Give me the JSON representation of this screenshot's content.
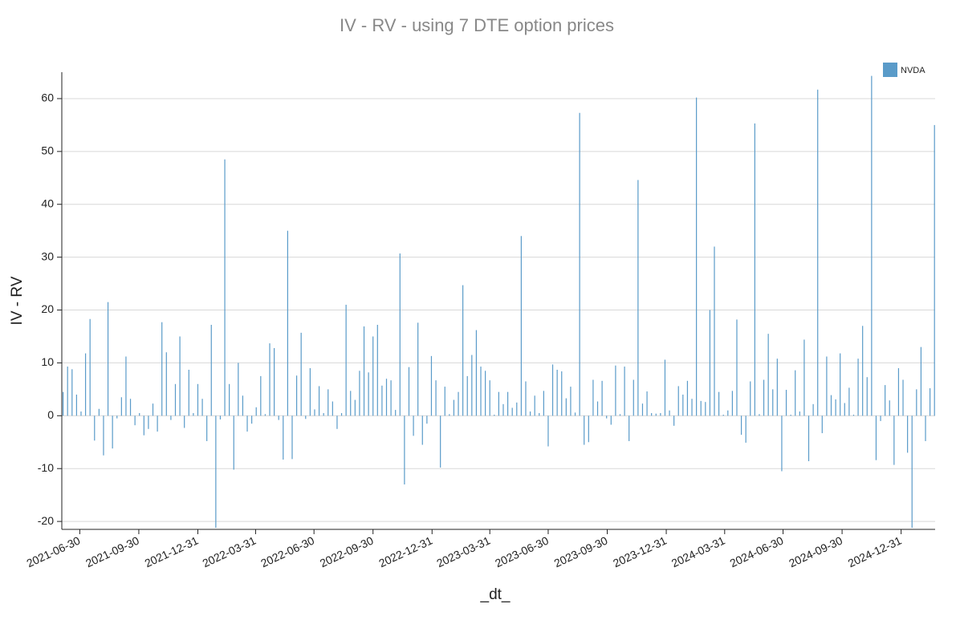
{
  "chart_data": {
    "type": "bar",
    "title": "IV - RV  - using 7 DTE option prices",
    "x_label": "_dt_",
    "y_label": "IV - RV",
    "legend_position": "upper right",
    "grid": true,
    "xlim": [
      "2021-06-02",
      "2025-02-22"
    ],
    "xticks": [
      "2021-06-30",
      "2021-09-30",
      "2021-12-31",
      "2022-03-31",
      "2022-06-30",
      "2022-09-30",
      "2022-12-31",
      "2023-03-31",
      "2023-06-30",
      "2023-09-30",
      "2023-12-31",
      "2024-03-31",
      "2024-06-30",
      "2024-09-30",
      "2024-12-31"
    ],
    "ylim": [
      -21.5,
      65
    ],
    "yticks": [
      -20,
      -10,
      0,
      10,
      20,
      30,
      40,
      50,
      60
    ],
    "x": [
      "2021-06-04",
      "2021-06-11",
      "2021-06-18",
      "2021-06-25",
      "2021-07-02",
      "2021-07-09",
      "2021-07-16",
      "2021-07-23",
      "2021-07-30",
      "2021-08-06",
      "2021-08-13",
      "2021-08-20",
      "2021-08-27",
      "2021-09-03",
      "2021-09-10",
      "2021-09-17",
      "2021-09-24",
      "2021-10-01",
      "2021-10-08",
      "2021-10-15",
      "2021-10-22",
      "2021-10-29",
      "2021-11-05",
      "2021-11-12",
      "2021-11-19",
      "2021-11-26",
      "2021-12-03",
      "2021-12-10",
      "2021-12-17",
      "2021-12-24",
      "2021-12-31",
      "2022-01-07",
      "2022-01-14",
      "2022-01-21",
      "2022-01-28",
      "2022-02-04",
      "2022-02-11",
      "2022-02-18",
      "2022-02-25",
      "2022-03-04",
      "2022-03-11",
      "2022-03-18",
      "2022-03-25",
      "2022-04-01",
      "2022-04-08",
      "2022-04-15",
      "2022-04-22",
      "2022-04-29",
      "2022-05-06",
      "2022-05-13",
      "2022-05-20",
      "2022-05-27",
      "2022-06-03",
      "2022-06-10",
      "2022-06-17",
      "2022-06-24",
      "2022-07-01",
      "2022-07-08",
      "2022-07-15",
      "2022-07-22",
      "2022-07-29",
      "2022-08-05",
      "2022-08-12",
      "2022-08-19",
      "2022-08-26",
      "2022-09-02",
      "2022-09-09",
      "2022-09-16",
      "2022-09-23",
      "2022-09-30",
      "2022-10-07",
      "2022-10-14",
      "2022-10-21",
      "2022-10-28",
      "2022-11-04",
      "2022-11-11",
      "2022-11-18",
      "2022-11-25",
      "2022-12-02",
      "2022-12-09",
      "2022-12-16",
      "2022-12-23",
      "2022-12-30",
      "2023-01-06",
      "2023-01-13",
      "2023-01-20",
      "2023-01-27",
      "2023-02-03",
      "2023-02-10",
      "2023-02-17",
      "2023-02-24",
      "2023-03-03",
      "2023-03-10",
      "2023-03-17",
      "2023-03-24",
      "2023-03-31",
      "2023-04-07",
      "2023-04-14",
      "2023-04-21",
      "2023-04-28",
      "2023-05-05",
      "2023-05-12",
      "2023-05-19",
      "2023-05-26",
      "2023-06-02",
      "2023-06-09",
      "2023-06-16",
      "2023-06-23",
      "2023-06-30",
      "2023-07-07",
      "2023-07-14",
      "2023-07-21",
      "2023-07-28",
      "2023-08-04",
      "2023-08-11",
      "2023-08-18",
      "2023-08-25",
      "2023-09-01",
      "2023-09-08",
      "2023-09-15",
      "2023-09-22",
      "2023-09-29",
      "2023-10-06",
      "2023-10-13",
      "2023-10-20",
      "2023-10-27",
      "2023-11-03",
      "2023-11-10",
      "2023-11-17",
      "2023-11-24",
      "2023-12-01",
      "2023-12-08",
      "2023-12-15",
      "2023-12-22",
      "2023-12-29",
      "2024-01-05",
      "2024-01-12",
      "2024-01-19",
      "2024-01-26",
      "2024-02-02",
      "2024-02-09",
      "2024-02-16",
      "2024-02-23",
      "2024-03-01",
      "2024-03-08",
      "2024-03-15",
      "2024-03-22",
      "2024-03-29",
      "2024-04-05",
      "2024-04-12",
      "2024-04-19",
      "2024-04-26",
      "2024-05-03",
      "2024-05-10",
      "2024-05-17",
      "2024-05-24",
      "2024-05-31",
      "2024-06-07",
      "2024-06-14",
      "2024-06-21",
      "2024-06-28",
      "2024-07-05",
      "2024-07-12",
      "2024-07-19",
      "2024-07-26",
      "2024-08-02",
      "2024-08-09",
      "2024-08-16",
      "2024-08-23",
      "2024-08-30",
      "2024-09-06",
      "2024-09-13",
      "2024-09-20",
      "2024-09-27",
      "2024-10-04",
      "2024-10-11",
      "2024-10-18",
      "2024-10-25",
      "2024-11-01",
      "2024-11-08",
      "2024-11-15",
      "2024-11-22",
      "2024-11-29",
      "2024-12-06",
      "2024-12-13",
      "2024-12-20",
      "2024-12-27",
      "2025-01-03",
      "2025-01-10",
      "2025-01-17",
      "2025-01-24",
      "2025-01-31",
      "2025-02-07",
      "2025-02-14",
      "2025-02-21"
    ],
    "series": [
      {
        "name": "NVDA",
        "color": "#5a9bc9",
        "values": [
          4.5,
          9.3,
          8.8,
          4,
          0.8,
          11.8,
          18.3,
          -4.7,
          1.3,
          -7.5,
          21.5,
          -6.2,
          -0.5,
          3.5,
          11.2,
          3.2,
          -1.8,
          0.5,
          -3.7,
          -2.5,
          2.3,
          -3,
          17.7,
          12,
          -0.8,
          6,
          15,
          -2.3,
          8.7,
          0.5,
          6,
          3.2,
          -4.8,
          17.2,
          -21.2,
          -0.7,
          48.5,
          6,
          -10.2,
          10,
          3.8,
          -3,
          -1.5,
          1.6,
          7.5,
          0.3,
          13.7,
          12.8,
          -0.8,
          -8.3,
          35,
          -8.2,
          7.6,
          15.7,
          -0.6,
          9,
          1.2,
          5.6,
          0.5,
          5,
          2.7,
          -2.5,
          0.5,
          21,
          4.7,
          3,
          8.5,
          16.9,
          8.2,
          15,
          17.2,
          5.7,
          7,
          6.7,
          1.1,
          30.7,
          -13,
          9.2,
          -3.8,
          17.6,
          -5.5,
          -1.5,
          11.3,
          6.7,
          -9.8,
          5.5,
          0.3,
          3,
          4.5,
          24.7,
          7.5,
          11.5,
          16.2,
          9.3,
          8.5,
          6.7,
          0.2,
          4.5,
          2.2,
          4.5,
          1.5,
          2.5,
          34,
          6.5,
          0.8,
          3.8,
          0.5,
          4.7,
          -5.8,
          9.7,
          8.7,
          8.4,
          3.3,
          5.5,
          0.6,
          57.3,
          -5.5,
          -5,
          6.8,
          2.7,
          6.6,
          -0.5,
          -1.7,
          9.5,
          0.3,
          9.3,
          -4.8,
          6.8,
          44.6,
          2.3,
          4.6,
          0.5,
          0.4,
          0.5,
          10.6,
          1,
          -1.9,
          5.6,
          4,
          6.6,
          3.2,
          60.2,
          2.8,
          2.6,
          20,
          32,
          4.5,
          0.2,
          1,
          4.7,
          18.2,
          -3.6,
          -5.1,
          6.5,
          55.3,
          0.3,
          6.8,
          15.5,
          5,
          10.8,
          -10.5,
          4.9,
          0.2,
          8.6,
          0.8,
          14.4,
          -8.6,
          2.2,
          61.7,
          -3.3,
          11.2,
          3.9,
          3.1,
          11.8,
          2.4,
          5.3,
          0.2,
          10.8,
          17,
          7.3,
          64.3,
          -8.4,
          -1,
          5.8,
          2.9,
          -9.3,
          9,
          6.8,
          -7,
          -21.2,
          5,
          13,
          -4.8,
          5.2,
          55
        ]
      }
    ]
  }
}
